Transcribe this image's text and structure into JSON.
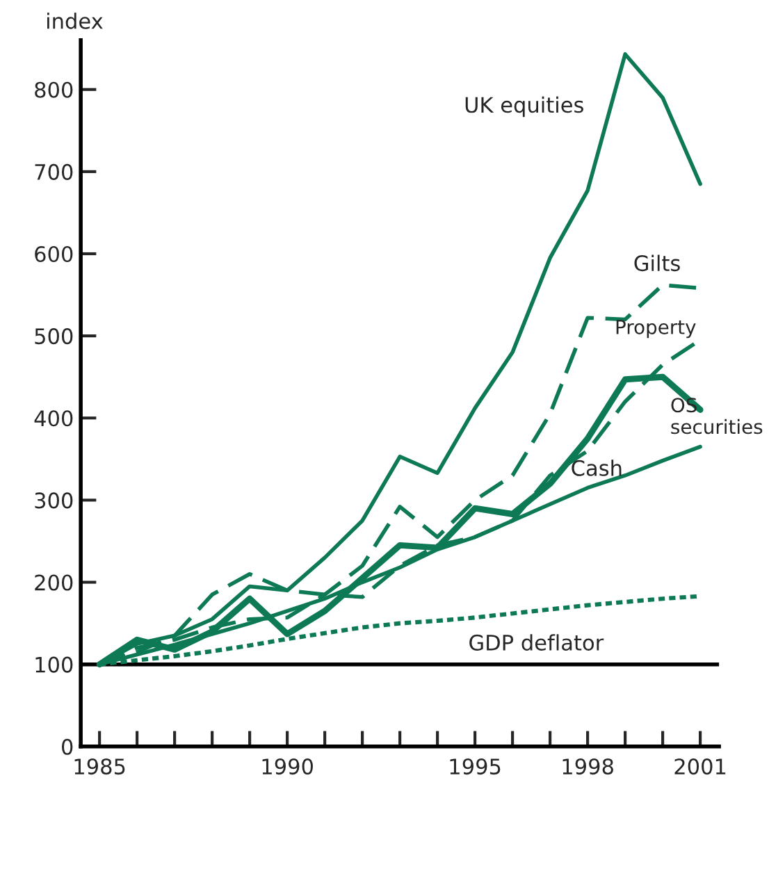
{
  "chart_data": {
    "type": "line",
    "ylabel": "index",
    "x": [
      1985,
      1986,
      1987,
      1988,
      1989,
      1990,
      1991,
      1992,
      1993,
      1994,
      1995,
      1996,
      1997,
      1998,
      1999,
      2000,
      2001
    ],
    "series": [
      {
        "name": "UK equities",
        "color": "#0e7a55",
        "line_style": "solid",
        "values": [
          100,
          125,
          135,
          155,
          195,
          190,
          230,
          275,
          353,
          333,
          412,
          480,
          595,
          677,
          843,
          790,
          685
        ]
      },
      {
        "name": "Gilts",
        "color": "#0e7a55",
        "line_style": "dashed",
        "values": [
          100,
          120,
          130,
          145,
          155,
          157,
          185,
          220,
          292,
          255,
          300,
          330,
          405,
          522,
          520,
          562,
          558
        ]
      },
      {
        "name": "Property",
        "color": "#0e7a55",
        "line_style": "dashed",
        "values": [
          100,
          115,
          135,
          185,
          210,
          190,
          185,
          182,
          220,
          245,
          255,
          275,
          330,
          360,
          420,
          465,
          495
        ]
      },
      {
        "name": "OS securities",
        "color": "#0e7a55",
        "line_style": "solid",
        "values": [
          100,
          130,
          118,
          140,
          180,
          137,
          165,
          205,
          245,
          242,
          290,
          283,
          320,
          375,
          447,
          450,
          410
        ]
      },
      {
        "name": "Cash",
        "color": "#0e7a55",
        "line_style": "solid",
        "values": [
          100,
          112,
          124,
          137,
          150,
          165,
          180,
          200,
          218,
          240,
          255,
          275,
          295,
          315,
          330,
          348,
          365
        ]
      },
      {
        "name": "GDP deflator",
        "color": "#0e7a55",
        "line_style": "dotted",
        "values": [
          100,
          105,
          110,
          116,
          123,
          131,
          138,
          145,
          150,
          153,
          157,
          162,
          167,
          172,
          176,
          180,
          183
        ]
      }
    ],
    "xlim": [
      1984.5,
      2001.5
    ],
    "ylim": [
      0,
      860
    ],
    "xticks": [
      1985,
      {
        "value": 1986,
        "label": null
      },
      {
        "value": 1987,
        "label": null
      },
      {
        "value": 1988,
        "label": null
      },
      {
        "value": 1989,
        "label": null
      },
      1990,
      {
        "value": 1991,
        "label": null
      },
      {
        "value": 1992,
        "label": null
      },
      {
        "value": 1993,
        "label": null
      },
      {
        "value": 1994,
        "label": null
      },
      1995,
      {
        "value": 1996,
        "label": null
      },
      {
        "value": 1997,
        "label": null
      },
      1998,
      {
        "value": 1999,
        "label": null
      },
      {
        "value": 2000,
        "label": null
      },
      2001
    ],
    "yticks": [
      0,
      100,
      200,
      300,
      400,
      500,
      600,
      700,
      800
    ],
    "ref_lines": [
      {
        "axis": "y",
        "value": 100,
        "color": "#000000"
      }
    ],
    "grid": false,
    "legend": false,
    "marker": "none"
  }
}
